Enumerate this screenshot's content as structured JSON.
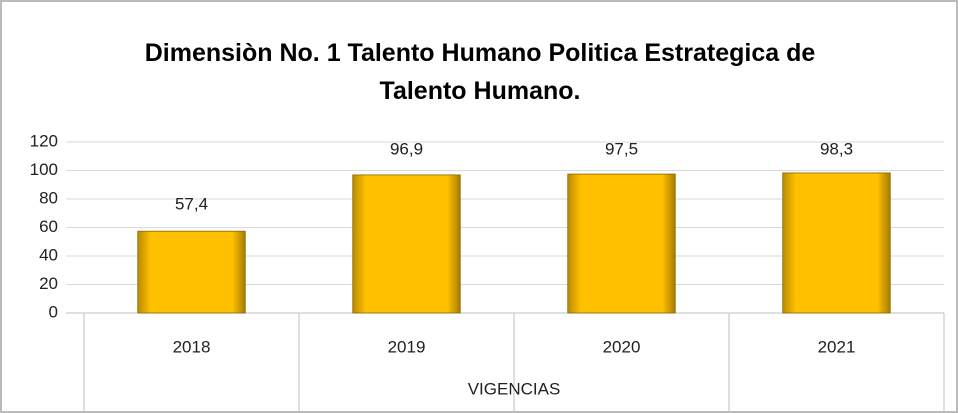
{
  "chart_data": {
    "type": "bar",
    "title": "Dimensiòn No. 1 Talento Humano Politica Estrategica de Talento Humano.",
    "x_label": "VIGENCIAS",
    "categories": [
      "2018",
      "2019",
      "2020",
      "2021"
    ],
    "values": [
      57.4,
      96.9,
      97.5,
      98.3
    ],
    "value_labels": [
      "57,4",
      "96,9",
      "97,5",
      "98,3"
    ],
    "color": "#ffc000",
    "ylim": [
      0,
      120
    ],
    "yticks": [
      0,
      20,
      40,
      60,
      80,
      100,
      120
    ],
    "grid": true
  }
}
